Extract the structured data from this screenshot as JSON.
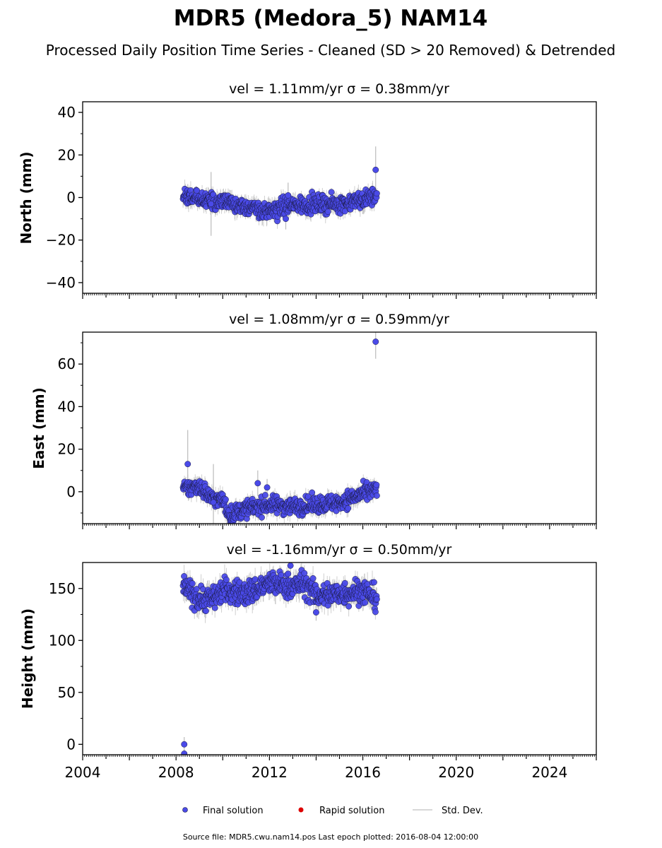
{
  "figure": {
    "title": "MDR5 (Medora_5) NAM14",
    "subtitle": "Processed Daily Position Time Series - Cleaned (SD > 20 Removed) & Detrended",
    "source_note": "Source file: MDR5.cwu.nam14.pos  Last epoch plotted: 2016-08-04 12:00:00",
    "legend": [
      {
        "label": "Final solution",
        "marker": "circle",
        "color": "#4a4ae8"
      },
      {
        "label": "Rapid solution",
        "marker": "circle",
        "color": "#dd0000"
      },
      {
        "label": "Std. Dev.",
        "marker": "line",
        "color": "#cccccc"
      }
    ],
    "colors": {
      "final": "#4a4ae8",
      "final_edge": "#1a1a40",
      "rapid": "#dd0000",
      "errorbar": "#bbbbbb"
    }
  },
  "chart_data": [
    {
      "type": "scatter",
      "title": "vel = 1.11mm/yr   σ = 0.38mm/yr",
      "ylabel": "North (mm)",
      "xlim": [
        2004,
        2026
      ],
      "ylim": [
        -45,
        45
      ],
      "yticks": [
        -40,
        -20,
        0,
        20,
        40
      ],
      "xticks": [
        2004,
        2008,
        2012,
        2016,
        2020,
        2024
      ],
      "show_xticklabels": false,
      "data_range": [
        2008.3,
        2016.6
      ],
      "trend": [
        [
          2008.3,
          1
        ],
        [
          2009.0,
          -1
        ],
        [
          2010.0,
          -2
        ],
        [
          2011.0,
          -4
        ],
        [
          2011.9,
          -7
        ],
        [
          2012.6,
          -4
        ],
        [
          2014.0,
          -3
        ],
        [
          2015.0,
          -3
        ],
        [
          2016.0,
          -1
        ],
        [
          2016.6,
          1
        ]
      ],
      "noise": 2.0,
      "sd_typical": 3,
      "outliers": [
        {
          "x": 2016.55,
          "y": 13,
          "sd": 11
        },
        {
          "x": 2012.7,
          "y": -10,
          "sd": 5
        },
        {
          "x": 2012.8,
          "y": 1,
          "sd": 6
        },
        {
          "x": 2009.5,
          "y": -3,
          "sd": 15
        }
      ]
    },
    {
      "type": "scatter",
      "title": "vel = 1.08mm/yr   σ = 0.59mm/yr",
      "ylabel": "East (mm)",
      "xlim": [
        2004,
        2026
      ],
      "ylim": [
        -15,
        75
      ],
      "yticks": [
        0,
        20,
        40,
        60
      ],
      "xticks": [
        2004,
        2008,
        2012,
        2016,
        2020,
        2024
      ],
      "show_xticklabels": false,
      "data_range": [
        2008.3,
        2016.6
      ],
      "trend": [
        [
          2008.3,
          1
        ],
        [
          2009.0,
          3
        ],
        [
          2009.5,
          -3
        ],
        [
          2010.0,
          -4
        ],
        [
          2010.3,
          -11
        ],
        [
          2011.0,
          -8
        ],
        [
          2012.0,
          -6
        ],
        [
          2013.0,
          -7
        ],
        [
          2014.0,
          -6
        ],
        [
          2015.0,
          -5
        ],
        [
          2016.0,
          -1
        ],
        [
          2016.6,
          1
        ]
      ],
      "noise": 2.0,
      "sd_typical": 3,
      "outliers": [
        {
          "x": 2016.55,
          "y": 70.5,
          "sd": 8
        },
        {
          "x": 2008.5,
          "y": 13,
          "sd": 16
        },
        {
          "x": 2011.5,
          "y": 4,
          "sd": 6
        },
        {
          "x": 2011.9,
          "y": 2,
          "sd": 4
        },
        {
          "x": 2009.6,
          "y": -5,
          "sd": 18
        }
      ]
    },
    {
      "type": "scatter",
      "title": "vel = -1.16mm/yr   σ = 0.50mm/yr",
      "ylabel": "Height (mm)",
      "xlim": [
        2004,
        2026
      ],
      "ylim": [
        -10,
        175
      ],
      "yticks": [
        0,
        50,
        100,
        150
      ],
      "xticks": [
        2004,
        2008,
        2012,
        2016,
        2020,
        2024
      ],
      "show_xticklabels": true,
      "data_range": [
        2008.3,
        2016.6
      ],
      "trend": [
        [
          2008.3,
          152
        ],
        [
          2009.0,
          140
        ],
        [
          2009.5,
          140
        ],
        [
          2010.0,
          148
        ],
        [
          2011.0,
          145
        ],
        [
          2012.0,
          155
        ],
        [
          2013.0,
          152
        ],
        [
          2013.5,
          155
        ],
        [
          2014.0,
          143
        ],
        [
          2015.0,
          145
        ],
        [
          2016.0,
          148
        ],
        [
          2016.6,
          140
        ]
      ],
      "noise": 6.0,
      "sd_typical": 8,
      "outliers": [
        {
          "x": 2008.35,
          "y": 0,
          "sd": 7
        },
        {
          "x": 2008.35,
          "y": -9,
          "sd": 4
        },
        {
          "x": 2012.9,
          "y": 172,
          "sd": 6
        },
        {
          "x": 2014.0,
          "y": 127,
          "sd": 8
        }
      ]
    }
  ]
}
